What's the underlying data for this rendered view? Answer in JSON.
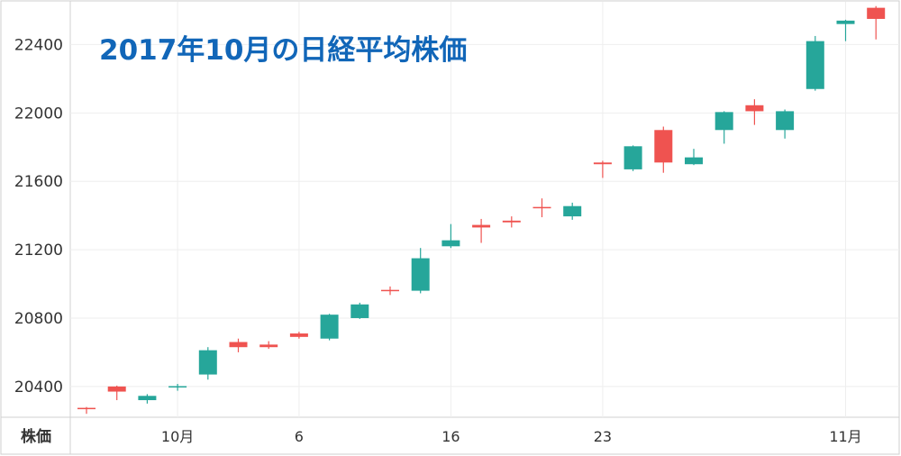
{
  "chart_data": {
    "type": "candlestick",
    "title": "2017年10月の日経平均株価",
    "y_axis_name": "株価",
    "ylim": [
      20220,
      22650
    ],
    "y_ticks": [
      20400,
      20800,
      21200,
      21600,
      22000,
      22400
    ],
    "x_ticks": [
      {
        "label": "10月",
        "index": 3
      },
      {
        "label": "6",
        "index": 7
      },
      {
        "label": "16",
        "index": 12
      },
      {
        "label": "23",
        "index": 17
      },
      {
        "label": "11月",
        "index": 25
      }
    ],
    "up_color": "#ef5350",
    "down_color": "#26a69a",
    "candles": [
      {
        "open": 20270,
        "close": 20275,
        "high": 20280,
        "low": 20240
      },
      {
        "open": 20370,
        "close": 20400,
        "high": 20405,
        "low": 20320
      },
      {
        "open": 20345,
        "close": 20320,
        "high": 20355,
        "low": 20300
      },
      {
        "open": 20402,
        "close": 20400,
        "high": 20415,
        "low": 20375
      },
      {
        "open": 20612,
        "close": 20470,
        "high": 20630,
        "low": 20440
      },
      {
        "open": 20630,
        "close": 20660,
        "high": 20680,
        "low": 20600
      },
      {
        "open": 20630,
        "close": 20645,
        "high": 20665,
        "low": 20620
      },
      {
        "open": 20690,
        "close": 20710,
        "high": 20720,
        "low": 20680
      },
      {
        "open": 20820,
        "close": 20680,
        "high": 20825,
        "low": 20670
      },
      {
        "open": 20880,
        "close": 20800,
        "high": 20890,
        "low": 20795
      },
      {
        "open": 20960,
        "close": 20965,
        "high": 20985,
        "low": 20935
      },
      {
        "open": 21150,
        "close": 20960,
        "high": 21210,
        "low": 20945
      },
      {
        "open": 21255,
        "close": 21220,
        "high": 21350,
        "low": 21210
      },
      {
        "open": 21330,
        "close": 21345,
        "high": 21380,
        "low": 21240
      },
      {
        "open": 21360,
        "close": 21370,
        "high": 21395,
        "low": 21330
      },
      {
        "open": 21445,
        "close": 21450,
        "high": 21500,
        "low": 21390
      },
      {
        "open": 21455,
        "close": 21395,
        "high": 21475,
        "low": 21375
      },
      {
        "open": 21700,
        "close": 21710,
        "high": 21720,
        "low": 21620
      },
      {
        "open": 21805,
        "close": 21670,
        "high": 21810,
        "low": 21660
      },
      {
        "open": 21710,
        "close": 21900,
        "high": 21920,
        "low": 21650
      },
      {
        "open": 21740,
        "close": 21700,
        "high": 21790,
        "low": 21695
      },
      {
        "open": 22005,
        "close": 21900,
        "high": 22010,
        "low": 21820
      },
      {
        "open": 22010,
        "close": 22045,
        "high": 22080,
        "low": 21930
      },
      {
        "open": 22010,
        "close": 21900,
        "high": 22020,
        "low": 21850
      },
      {
        "open": 22420,
        "close": 22140,
        "high": 22450,
        "low": 22130
      },
      {
        "open": 22540,
        "close": 22520,
        "high": 22545,
        "low": 22420
      },
      {
        "open": 22550,
        "close": 22615,
        "high": 22625,
        "low": 22430
      }
    ]
  }
}
